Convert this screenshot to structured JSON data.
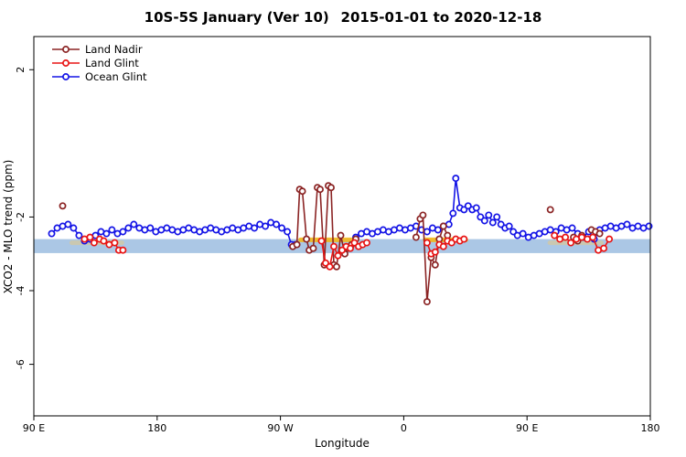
{
  "chart_data": {
    "type": "line",
    "title": "10S-5S January (Ver 10)  2015-01-01 to 2020-12-18",
    "xlabel": "Longitude",
    "ylabel": "XCO2 - MLO trend (ppm)",
    "xlim": [
      90,
      540
    ],
    "ylim": [
      -7.4,
      2.9
    ],
    "grid": false,
    "legend_position": "top-left-inside",
    "x_ticks": [
      {
        "pos": 90,
        "label": "90 E"
      },
      {
        "pos": 180,
        "label": "180"
      },
      {
        "pos": 270,
        "label": "90 W"
      },
      {
        "pos": 360,
        "label": "0"
      },
      {
        "pos": 450,
        "label": "90 E"
      },
      {
        "pos": 540,
        "label": "180"
      }
    ],
    "y_ticks": [
      {
        "pos": 2,
        "label": "2"
      },
      {
        "pos": -2,
        "label": "-2"
      },
      {
        "pos": -4,
        "label": "-4"
      },
      {
        "pos": -6,
        "label": "-6"
      }
    ],
    "band": {
      "y_from": -2.98,
      "y_to": -2.6,
      "color": "#a7c4e4",
      "opacity": 0.95
    },
    "highlight_segments": [
      {
        "x_from": 283,
        "x_to": 327,
        "y": -2.62,
        "color": "#f2b71c",
        "opacity": 0.9
      },
      {
        "x_from": 374,
        "x_to": 407,
        "y": -2.62,
        "color": "#f2b71c",
        "opacity": 0.9
      },
      {
        "x_from": 116,
        "x_to": 156,
        "y": -2.7,
        "color": "#e9c97e",
        "opacity": 0.5
      },
      {
        "x_from": 465,
        "x_to": 506,
        "y": -2.7,
        "color": "#e9c97e",
        "opacity": 0.5
      }
    ],
    "legend": [
      {
        "id": "land-nadir",
        "label": "Land Nadir",
        "color": "#8b2424"
      },
      {
        "id": "land-glint",
        "label": "Land Glint",
        "color": "#e81414"
      },
      {
        "id": "ocean-glint",
        "label": "Ocean Glint",
        "color": "#1414e6"
      }
    ],
    "series": [
      {
        "id": "ocean-glint",
        "name": "Ocean Glint",
        "color": "#1414e6",
        "segments": [
          [
            [
              103,
              -2.45
            ],
            [
              107,
              -2.3
            ],
            [
              111,
              -2.25
            ],
            [
              115,
              -2.2
            ],
            [
              119,
              -2.3
            ],
            [
              123,
              -2.5
            ],
            [
              127,
              -2.65
            ],
            [
              131,
              -2.6
            ],
            [
              135,
              -2.5
            ],
            [
              139,
              -2.4
            ],
            [
              143,
              -2.45
            ],
            [
              147,
              -2.35
            ],
            [
              151,
              -2.45
            ],
            [
              155,
              -2.4
            ],
            [
              159,
              -2.3
            ],
            [
              163,
              -2.2
            ],
            [
              167,
              -2.3
            ],
            [
              171,
              -2.35
            ],
            [
              175,
              -2.3
            ],
            [
              179,
              -2.4
            ],
            [
              183,
              -2.35
            ],
            [
              187,
              -2.3
            ],
            [
              191,
              -2.35
            ],
            [
              195,
              -2.4
            ],
            [
              199,
              -2.35
            ],
            [
              203,
              -2.3
            ],
            [
              207,
              -2.35
            ],
            [
              211,
              -2.4
            ],
            [
              215,
              -2.35
            ],
            [
              219,
              -2.3
            ],
            [
              223,
              -2.35
            ],
            [
              227,
              -2.4
            ],
            [
              231,
              -2.35
            ],
            [
              235,
              -2.3
            ],
            [
              239,
              -2.35
            ],
            [
              243,
              -2.3
            ],
            [
              247,
              -2.25
            ],
            [
              251,
              -2.3
            ],
            [
              255,
              -2.2
            ],
            [
              259,
              -2.25
            ],
            [
              263,
              -2.15
            ],
            [
              267,
              -2.2
            ],
            [
              271,
              -2.3
            ],
            [
              275,
              -2.4
            ],
            [
              278,
              -2.75
            ],
            [
              281,
              -2.75
            ]
          ],
          [
            [
              321,
              -2.8
            ],
            [
              325,
              -2.55
            ],
            [
              329,
              -2.45
            ],
            [
              333,
              -2.4
            ],
            [
              337,
              -2.45
            ],
            [
              341,
              -2.4
            ],
            [
              345,
              -2.35
            ],
            [
              349,
              -2.4
            ],
            [
              353,
              -2.35
            ],
            [
              357,
              -2.3
            ],
            [
              361,
              -2.35
            ],
            [
              365,
              -2.3
            ],
            [
              369,
              -2.25
            ],
            [
              373,
              -2.35
            ],
            [
              377,
              -2.4
            ],
            [
              381,
              -2.3
            ],
            [
              385,
              -2.35
            ],
            [
              389,
              -2.25
            ],
            [
              393,
              -2.2
            ],
            [
              396,
              -1.9
            ],
            [
              398,
              -0.95
            ],
            [
              401,
              -1.75
            ],
            [
              404,
              -1.8
            ],
            [
              407,
              -1.7
            ],
            [
              410,
              -1.8
            ],
            [
              413,
              -1.75
            ],
            [
              416,
              -2.0
            ],
            [
              419,
              -2.1
            ],
            [
              422,
              -1.95
            ],
            [
              425,
              -2.15
            ],
            [
              428,
              -2.0
            ],
            [
              431,
              -2.2
            ],
            [
              434,
              -2.3
            ],
            [
              437,
              -2.25
            ],
            [
              440,
              -2.4
            ],
            [
              443,
              -2.5
            ],
            [
              447,
              -2.45
            ],
            [
              451,
              -2.55
            ],
            [
              455,
              -2.5
            ],
            [
              459,
              -2.45
            ],
            [
              463,
              -2.4
            ],
            [
              467,
              -2.35
            ],
            [
              471,
              -2.4
            ],
            [
              475,
              -2.3
            ],
            [
              479,
              -2.35
            ],
            [
              483,
              -2.3
            ],
            [
              487,
              -2.45
            ],
            [
              491,
              -2.55
            ],
            [
              495,
              -2.4
            ],
            [
              499,
              -2.6
            ],
            [
              503,
              -2.35
            ],
            [
              507,
              -2.3
            ],
            [
              511,
              -2.25
            ],
            [
              515,
              -2.3
            ],
            [
              519,
              -2.25
            ],
            [
              523,
              -2.2
            ],
            [
              527,
              -2.3
            ],
            [
              531,
              -2.25
            ],
            [
              535,
              -2.3
            ],
            [
              539,
              -2.25
            ]
          ]
        ]
      },
      {
        "id": "land-nadir",
        "name": "Land Nadir",
        "color": "#8b2424",
        "segments": [
          [
            [
              111,
              -1.7
            ]
          ],
          [
            [
              279,
              -2.8
            ],
            [
              282,
              -2.75
            ],
            [
              284,
              -1.25
            ],
            [
              286,
              -1.3
            ],
            [
              289,
              -2.6
            ],
            [
              291,
              -2.9
            ],
            [
              294,
              -2.85
            ],
            [
              297,
              -1.2
            ],
            [
              299,
              -1.25
            ],
            [
              302,
              -3.3
            ],
            [
              305,
              -1.15
            ],
            [
              307,
              -1.2
            ],
            [
              309,
              -3.3
            ],
            [
              311,
              -3.35
            ],
            [
              314,
              -2.5
            ],
            [
              317,
              -3.0
            ],
            [
              319,
              -2.85
            ],
            [
              322,
              -2.75
            ],
            [
              325,
              -2.6
            ]
          ],
          [
            [
              369,
              -2.55
            ],
            [
              372,
              -2.05
            ],
            [
              374,
              -1.95
            ],
            [
              377,
              -4.3
            ],
            [
              380,
              -3.1
            ],
            [
              383,
              -3.3
            ],
            [
              386,
              -2.6
            ],
            [
              389,
              -2.25
            ],
            [
              392,
              -2.5
            ]
          ],
          [
            [
              467,
              -1.8
            ]
          ],
          [
            [
              484,
              -2.55
            ],
            [
              487,
              -2.65
            ],
            [
              490,
              -2.5
            ]
          ],
          [
            [
              497,
              -2.35
            ],
            [
              500,
              -2.4
            ],
            [
              503,
              -2.45
            ]
          ]
        ]
      },
      {
        "id": "land-glint",
        "name": "Land Glint",
        "color": "#e81414",
        "segments": [
          [
            [
              127,
              -2.6
            ],
            [
              131,
              -2.55
            ],
            [
              134,
              -2.7
            ],
            [
              138,
              -2.6
            ],
            [
              141,
              -2.65
            ],
            [
              145,
              -2.75
            ],
            [
              149,
              -2.7
            ],
            [
              152,
              -2.9
            ],
            [
              155,
              -2.9
            ]
          ],
          [
            [
              300,
              -2.65
            ],
            [
              303,
              -3.25
            ],
            [
              306,
              -3.35
            ],
            [
              309,
              -2.8
            ],
            [
              312,
              -3.05
            ],
            [
              315,
              -2.9
            ],
            [
              318,
              -2.8
            ],
            [
              321,
              -2.85
            ],
            [
              324,
              -2.7
            ],
            [
              327,
              -2.8
            ],
            [
              330,
              -2.75
            ],
            [
              333,
              -2.7
            ]
          ],
          [
            [
              377,
              -2.7
            ],
            [
              380,
              -3.0
            ],
            [
              383,
              -2.95
            ],
            [
              386,
              -2.75
            ],
            [
              389,
              -2.8
            ],
            [
              392,
              -2.65
            ],
            [
              395,
              -2.7
            ],
            [
              398,
              -2.6
            ],
            [
              401,
              -2.65
            ],
            [
              404,
              -2.6
            ]
          ],
          [
            [
              470,
              -2.5
            ],
            [
              474,
              -2.6
            ],
            [
              478,
              -2.55
            ],
            [
              482,
              -2.7
            ],
            [
              486,
              -2.6
            ],
            [
              490,
              -2.55
            ],
            [
              494,
              -2.6
            ],
            [
              498,
              -2.55
            ],
            [
              502,
              -2.9
            ],
            [
              506,
              -2.85
            ],
            [
              510,
              -2.6
            ]
          ]
        ]
      }
    ]
  }
}
